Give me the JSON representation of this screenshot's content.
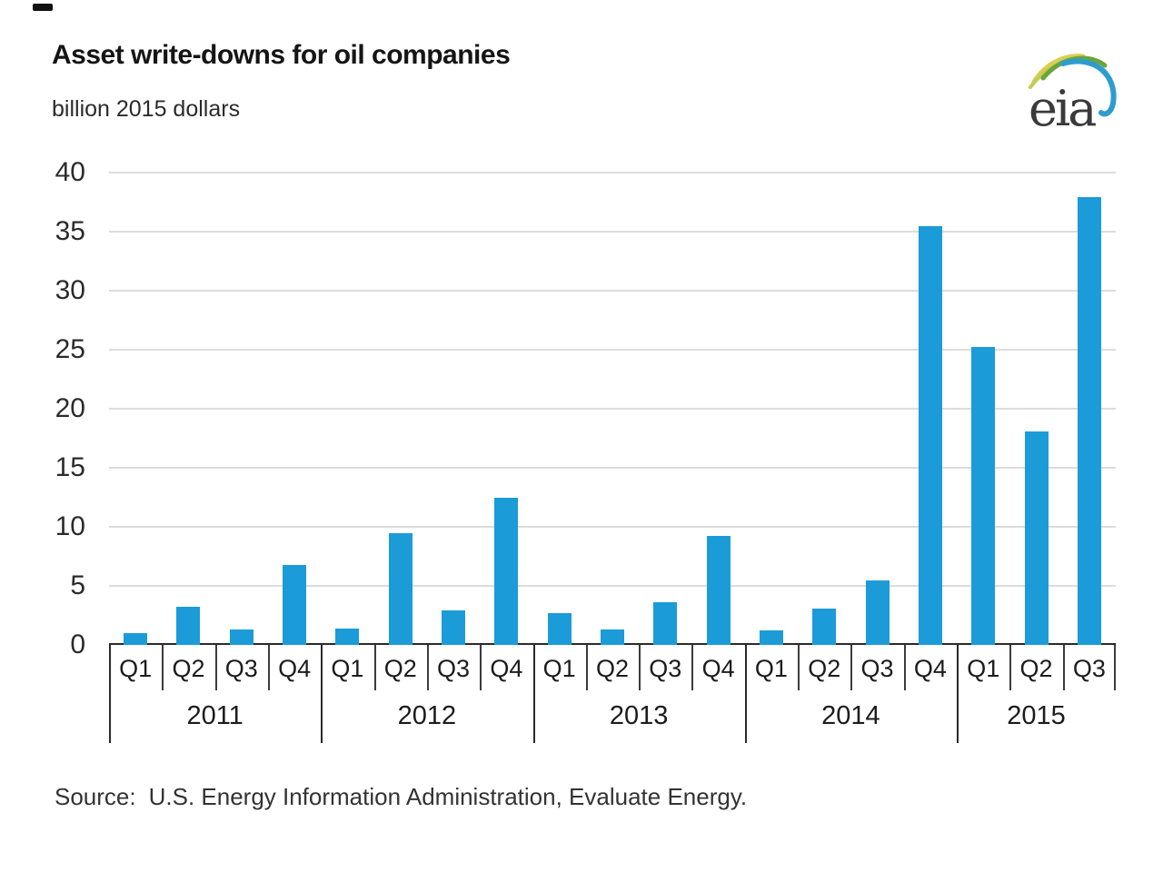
{
  "header": {
    "title": "Asset write-downs for oil companies",
    "subtitle": "billion 2015 dollars",
    "logo_text": "eia"
  },
  "source": {
    "label": "Source:",
    "text": "U.S. Energy Information Administration, Evaluate Energy."
  },
  "colors": {
    "bar": "#1b9cd8",
    "gridline": "#dcdcdc",
    "axis": "#2a2a2a",
    "logo_blue": "#2f9cd0",
    "logo_green": "#6aa53c",
    "logo_yellow": "#d9ce55"
  },
  "chart_data": {
    "type": "bar",
    "title": "Asset write-downs for oil companies",
    "ylabel": "billion 2015 dollars",
    "xlabel": "",
    "ylim": [
      0,
      40
    ],
    "yticks": [
      0,
      5,
      10,
      15,
      20,
      25,
      30,
      35,
      40
    ],
    "grid": "horizontal",
    "legend": "none",
    "bar_color": "#1b9cd8",
    "years": [
      {
        "label": "2011",
        "quarters": [
          "Q1",
          "Q2",
          "Q3",
          "Q4"
        ],
        "values": [
          1.0,
          3.2,
          1.3,
          6.8
        ]
      },
      {
        "label": "2012",
        "quarters": [
          "Q1",
          "Q2",
          "Q3",
          "Q4"
        ],
        "values": [
          1.4,
          9.5,
          2.9,
          12.5
        ]
      },
      {
        "label": "2013",
        "quarters": [
          "Q1",
          "Q2",
          "Q3",
          "Q4"
        ],
        "values": [
          2.7,
          1.3,
          3.6,
          9.2
        ]
      },
      {
        "label": "2014",
        "quarters": [
          "Q1",
          "Q2",
          "Q3",
          "Q4"
        ],
        "values": [
          1.2,
          3.1,
          5.5,
          35.5
        ]
      },
      {
        "label": "2015",
        "quarters": [
          "Q1",
          "Q2",
          "Q3"
        ],
        "values": [
          25.2,
          18.1,
          37.9
        ]
      }
    ]
  }
}
